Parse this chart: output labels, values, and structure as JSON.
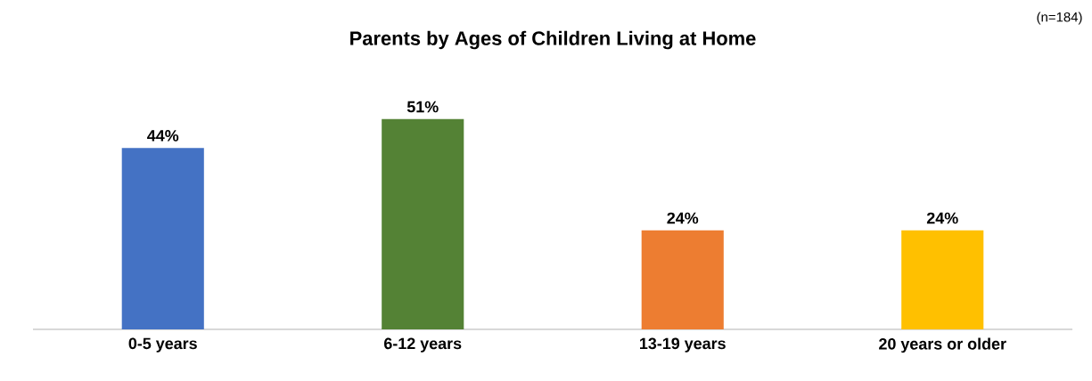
{
  "chart_data": {
    "type": "bar",
    "title": "Parents by Ages of Children Living at Home",
    "annotations": [
      "(n=184)"
    ],
    "categories": [
      "0-5 years",
      "6-12 years",
      "13-19 years",
      "20 years or older"
    ],
    "values": [
      44,
      51,
      24,
      24
    ],
    "value_labels": [
      "44%",
      "51%",
      "24%",
      "24%"
    ],
    "colors": [
      "#4472c4",
      "#548235",
      "#ed7d31",
      "#ffc000"
    ]
  }
}
